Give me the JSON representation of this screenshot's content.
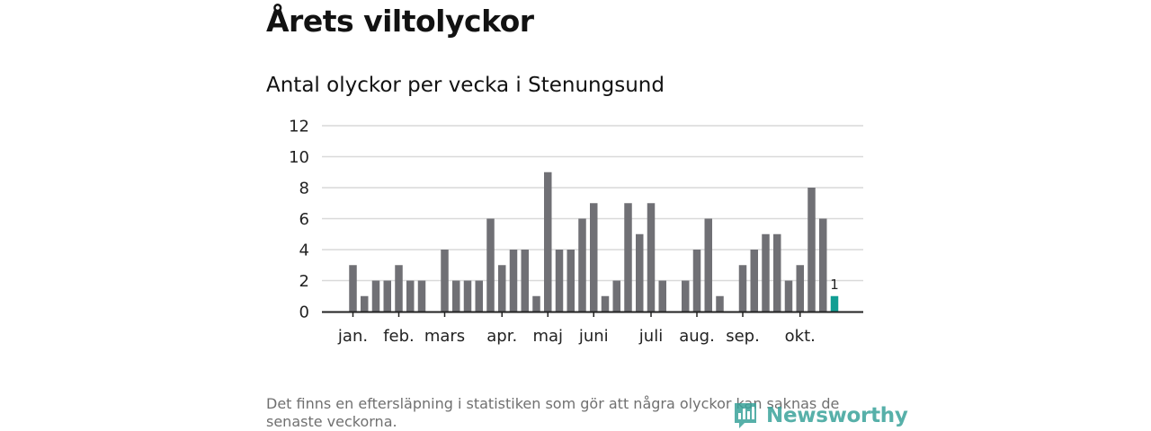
{
  "header": {
    "title": "Årets viltolyckor",
    "subtitle": "Antal olyckor per vecka i Stenungsund"
  },
  "chart_data": {
    "type": "bar",
    "title": "Antal olyckor per vecka i Stenungsund",
    "xlabel": "",
    "ylabel": "",
    "ylim": [
      0,
      12
    ],
    "yticks": [
      0,
      2,
      4,
      6,
      8,
      10,
      12
    ],
    "grid": true,
    "week_count": 43,
    "values": [
      3,
      1,
      2,
      2,
      3,
      2,
      2,
      null,
      4,
      2,
      2,
      2,
      6,
      3,
      4,
      4,
      1,
      9,
      4,
      4,
      6,
      7,
      1,
      2,
      7,
      5,
      7,
      2,
      null,
      2,
      4,
      6,
      1,
      null,
      3,
      4,
      5,
      5,
      2,
      3,
      8,
      6,
      1
    ],
    "month_labels": [
      {
        "label": "jan.",
        "week_index": 0
      },
      {
        "label": "feb.",
        "week_index": 4
      },
      {
        "label": "mars",
        "week_index": 8
      },
      {
        "label": "apr.",
        "week_index": 13
      },
      {
        "label": "maj",
        "week_index": 17
      },
      {
        "label": "juni",
        "week_index": 21
      },
      {
        "label": "juli",
        "week_index": 26
      },
      {
        "label": "aug.",
        "week_index": 30
      },
      {
        "label": "sep.",
        "week_index": 34
      },
      {
        "label": "okt.",
        "week_index": 39
      }
    ],
    "highlight": {
      "week_index": 42,
      "label": "1"
    },
    "colors": {
      "bar": "#707075",
      "highlight": "#119e93",
      "grid": "#d9d9d9",
      "axis": "#222222"
    }
  },
  "footer": {
    "note": "Det finns en eftersläpning i statistiken som gör att några olyckor kan saknas de senaste veckorna.",
    "brand": "Newsworthy",
    "brand_icon": "newsworthy-logo-icon"
  }
}
